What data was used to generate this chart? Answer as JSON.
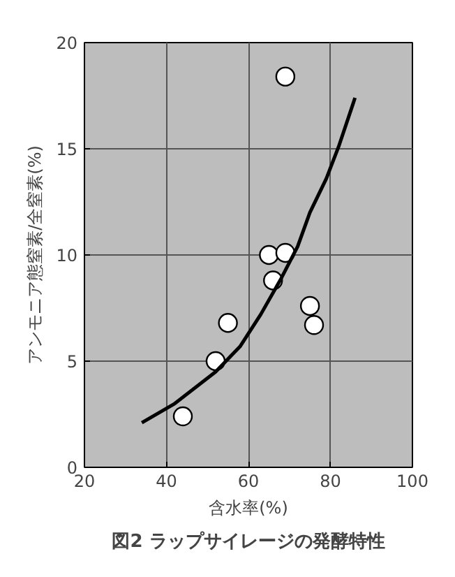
{
  "chart_data": {
    "type": "scatter",
    "title": "図2 ラップサイレージの発酵特性",
    "xlabel": "含水率(%)",
    "ylabel": "アンモニア態窒素/全窒素(%)",
    "xlim": [
      20,
      100
    ],
    "ylim": [
      0,
      20
    ],
    "xticks": [
      20,
      40,
      60,
      80,
      100
    ],
    "yticks": [
      0,
      5,
      10,
      15,
      20
    ],
    "grid": true,
    "series": [
      {
        "color": "#ffffff",
        "marker": "circle",
        "x": [
          44,
          52,
          55,
          65,
          69,
          66,
          69,
          75,
          76
        ],
        "values": [
          2.4,
          5.0,
          6.8,
          10.0,
          10.1,
          8.8,
          18.4,
          7.6,
          6.7
        ]
      },
      {
        "type": "line",
        "marker": "none",
        "color": "#000000",
        "x": [
          34,
          42,
          52,
          58,
          63,
          68,
          72,
          75,
          79,
          82,
          86
        ],
        "values": [
          2.1,
          3.0,
          4.5,
          5.7,
          7.2,
          8.9,
          10.4,
          12.0,
          13.6,
          15.1,
          17.4
        ]
      }
    ]
  }
}
